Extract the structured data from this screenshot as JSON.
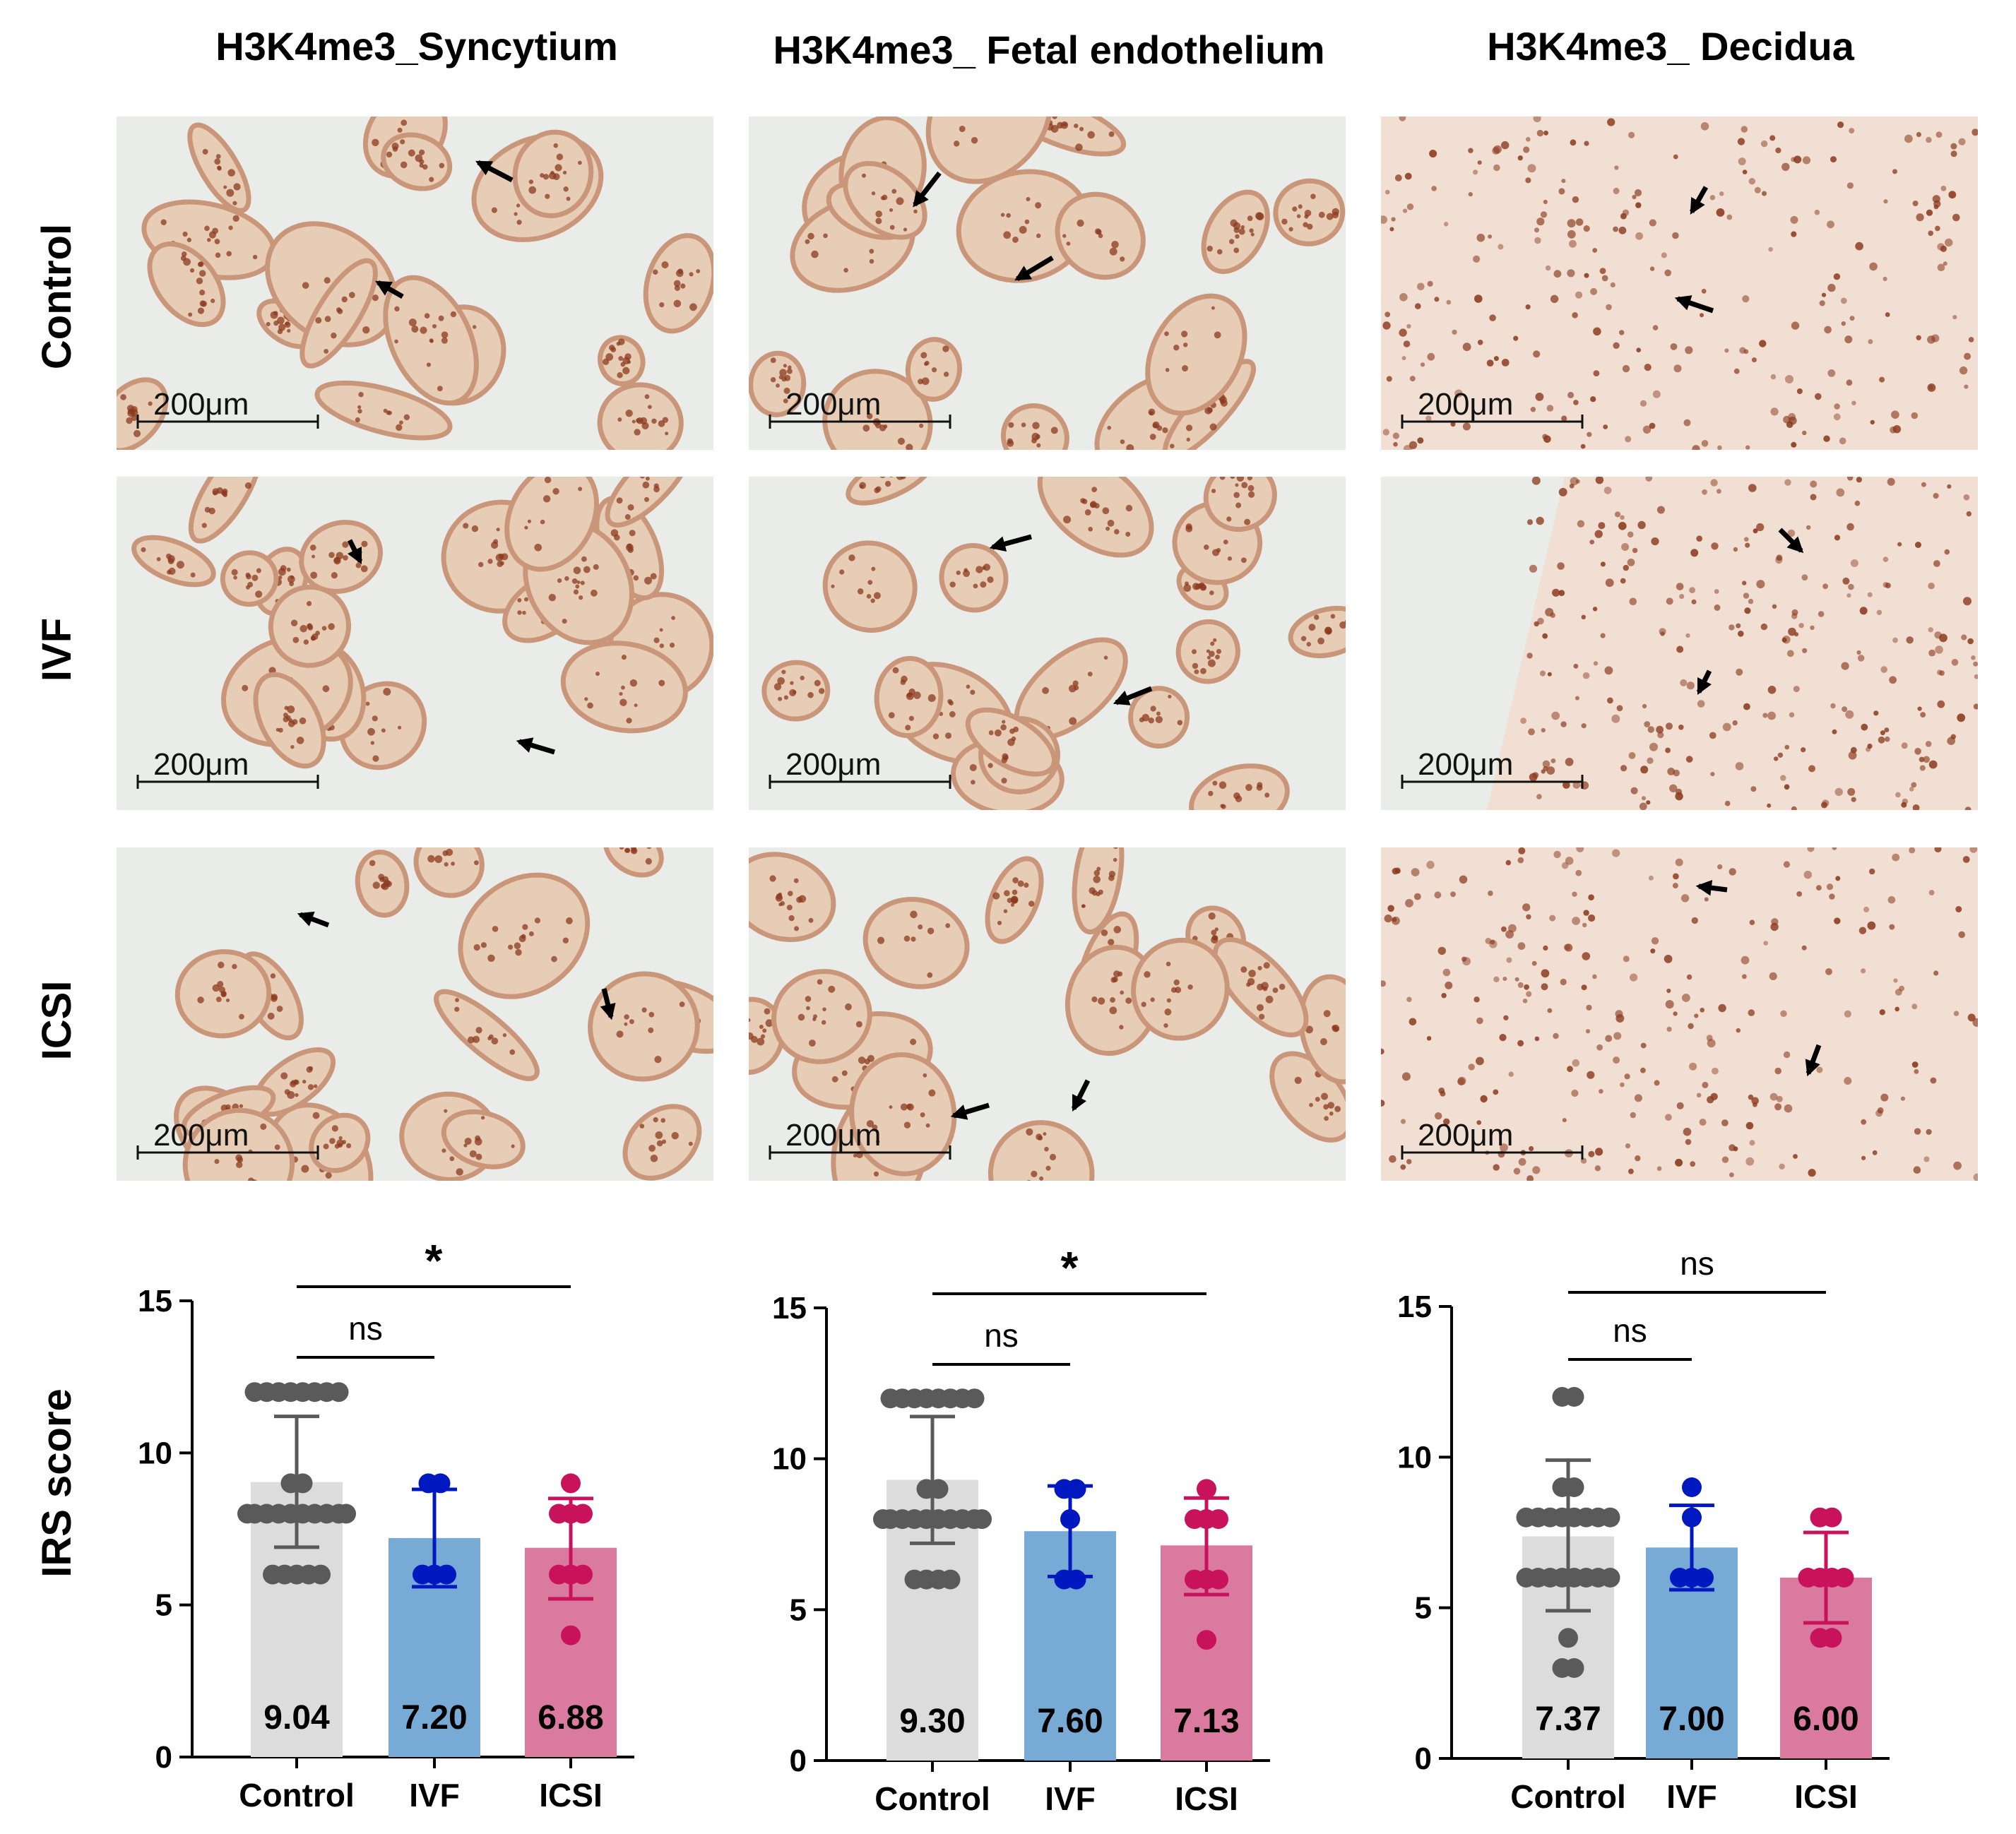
{
  "columns": [
    {
      "title": "H3K4me3_Syncytium",
      "tissue": "syncytium"
    },
    {
      "title": "H3K4me3_ Fetal endothelium",
      "tissue": "endothelium"
    },
    {
      "title": "H3K4me3_ Decidua",
      "tissue": "decidua"
    }
  ],
  "rows": [
    "Control",
    "IVF",
    "ICSI"
  ],
  "scale_bar_label": "200μm",
  "image_colors": {
    "background": "#e9ece8",
    "tissue_light": "#e8cdb6",
    "tissue_dark": "#c9967a",
    "nucleus": "#8b3a1e",
    "decidua_bg": "#f0dfd2"
  },
  "arrow_icon": "arrow-icon",
  "ylabel": "IRS  score",
  "colors": {
    "Control": "#dcdcdc",
    "IVF": "#78aad6",
    "ICSI": "#d97a9e",
    "Control_points": "#5a5a5a",
    "IVF_points": "#0018c0",
    "ICSI_points": "#c8135c"
  },
  "chart_data": [
    {
      "type": "bar",
      "title": "",
      "xlabel": "",
      "ylabel": "IRS  score",
      "ylim": [
        0,
        15
      ],
      "yticks": [
        0,
        5,
        10,
        15
      ],
      "categories": [
        "Control",
        "IVF",
        "ICSI"
      ],
      "values": [
        9.04,
        7.2,
        6.88
      ],
      "value_labels": [
        "9.04",
        "7.20",
        "6.88"
      ],
      "error": [
        [
          6.9,
          11.2
        ],
        [
          5.6,
          8.8
        ],
        [
          5.2,
          8.5
        ]
      ],
      "points": [
        [
          12,
          12,
          12,
          12,
          12,
          12,
          12,
          12,
          9,
          9,
          8,
          8,
          8,
          8,
          8,
          8,
          8,
          8,
          8,
          8,
          6,
          6,
          6,
          6,
          6
        ],
        [
          9,
          9,
          6,
          6,
          6
        ],
        [
          9,
          8,
          8,
          8,
          6,
          6,
          6,
          4
        ]
      ],
      "comparisons": [
        {
          "from": "Control",
          "to": "IVF",
          "label": "ns"
        },
        {
          "from": "Control",
          "to": "ICSI",
          "label": "*"
        }
      ]
    },
    {
      "type": "bar",
      "title": "",
      "xlabel": "",
      "ylabel": "",
      "ylim": [
        0,
        15
      ],
      "yticks": [
        0,
        5,
        10,
        15
      ],
      "categories": [
        "Control",
        "IVF",
        "ICSI"
      ],
      "values": [
        9.3,
        7.6,
        7.13
      ],
      "value_labels": [
        "9.30",
        "7.60",
        "7.13"
      ],
      "error": [
        [
          7.2,
          11.4
        ],
        [
          6.1,
          9.1
        ],
        [
          5.5,
          8.7
        ]
      ],
      "points": [
        [
          12,
          12,
          12,
          12,
          12,
          12,
          12,
          12,
          9,
          9,
          8,
          8,
          8,
          8,
          8,
          8,
          8,
          8,
          8,
          8,
          6,
          6,
          6,
          6
        ],
        [
          9,
          9,
          8,
          6,
          6
        ],
        [
          9,
          8,
          8,
          8,
          6,
          6,
          6,
          4
        ]
      ],
      "comparisons": [
        {
          "from": "Control",
          "to": "IVF",
          "label": "ns"
        },
        {
          "from": "Control",
          "to": "ICSI",
          "label": "*"
        }
      ]
    },
    {
      "type": "bar",
      "title": "",
      "xlabel": "",
      "ylabel": "",
      "ylim": [
        0,
        15
      ],
      "yticks": [
        0,
        5,
        10,
        15
      ],
      "categories": [
        "Control",
        "IVF",
        "ICSI"
      ],
      "values": [
        7.37,
        7.0,
        6.0
      ],
      "value_labels": [
        "7.37",
        "7.00",
        "6.00"
      ],
      "error": [
        [
          4.9,
          9.9
        ],
        [
          5.6,
          8.4
        ],
        [
          4.5,
          7.5
        ]
      ],
      "points": [
        [
          12,
          12,
          9,
          9,
          8,
          8,
          8,
          8,
          8,
          8,
          8,
          8,
          6,
          6,
          6,
          6,
          6,
          6,
          6,
          6,
          4,
          3,
          3
        ],
        [
          9,
          8,
          6,
          6,
          6
        ],
        [
          8,
          8,
          6,
          6,
          6,
          6,
          4,
          4
        ]
      ],
      "comparisons": [
        {
          "from": "Control",
          "to": "IVF",
          "label": "ns"
        },
        {
          "from": "Control",
          "to": "ICSI",
          "label": "ns"
        }
      ]
    }
  ]
}
